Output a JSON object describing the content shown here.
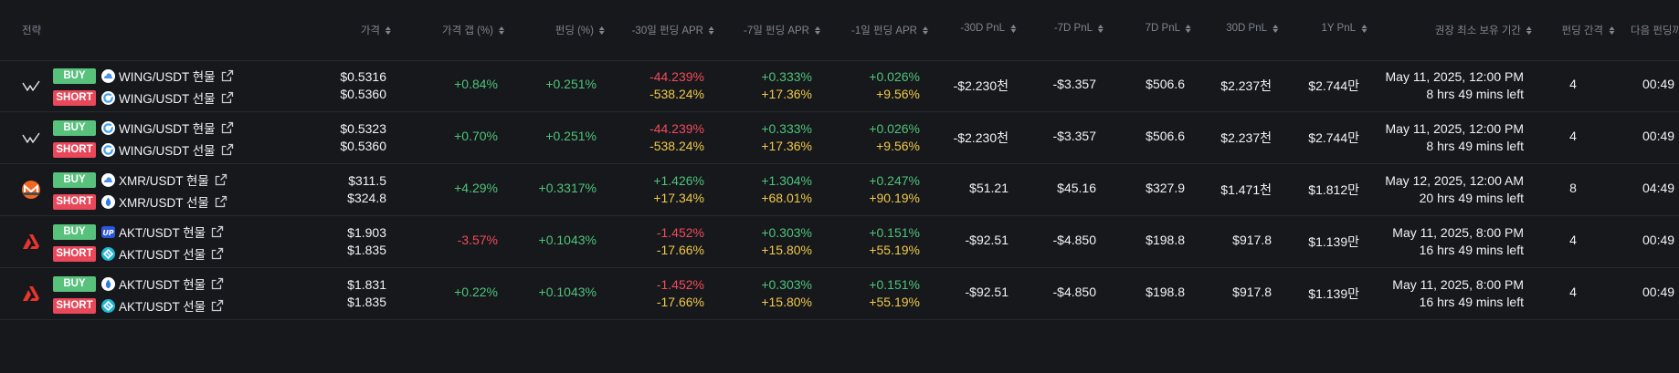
{
  "header": {
    "strategy": "전략",
    "price": "가격",
    "price_gap": "가격 갭 (%)",
    "funding": "펀딩 (%)",
    "apr30": "-30일 펀딩 APR",
    "apr7": "-7일 펀딩 APR",
    "apr1": "-1일 펀딩 APR",
    "pnl30neg": "-30D PnL",
    "pnl7neg": "-7D PnL",
    "pnl7": "7D PnL",
    "pnl30": "30D PnL",
    "pnl1y": "1Y PnL",
    "min_hold": "권장 최소 보유 기간",
    "interval": "펀딩 간격",
    "next": "다음 펀딩까"
  },
  "rows": [
    {
      "logo": "wing-logo-icon",
      "buy": {
        "badge": "BUY",
        "pair": "WING/USDT 현물",
        "exchange_icon": "cloud-exchange-icon",
        "exchange_color": "#4a8ef0"
      },
      "short": {
        "badge": "SHORT",
        "pair": "WING/USDT 선물",
        "exchange_icon": "ring-exchange-icon",
        "exchange_color": "#3fa0ee"
      },
      "price1": "$0.5316",
      "price2": "$0.5360",
      "gap": "+0.84%",
      "gap_color": "green",
      "funding": "+0.251%",
      "apr30a": "-44.239%",
      "apr30b": "-538.24%",
      "apr30a_color": "red",
      "apr7a": "+0.333%",
      "apr7b": "+17.36%",
      "apr1a": "+0.026%",
      "apr1b": "+9.56%",
      "pnl30neg": "-$2.230천",
      "pnl7neg": "-$3.357",
      "pnl7": "$506.6",
      "pnl30": "$2.237천",
      "pnl1y": "$2.744만",
      "hold1": "May 11, 2025, 12:00 PM",
      "hold2": "8 hrs 49 mins left",
      "interval": "4",
      "next": "00:49"
    },
    {
      "logo": "wing-logo-icon",
      "buy": {
        "badge": "BUY",
        "pair": "WING/USDT 현물",
        "exchange_icon": "ring-exchange-icon",
        "exchange_color": "#3fa0ee"
      },
      "short": {
        "badge": "SHORT",
        "pair": "WING/USDT 선물",
        "exchange_icon": "ring-exchange-icon",
        "exchange_color": "#3fa0ee"
      },
      "price1": "$0.5323",
      "price2": "$0.5360",
      "gap": "+0.70%",
      "gap_color": "green",
      "funding": "+0.251%",
      "apr30a": "-44.239%",
      "apr30b": "-538.24%",
      "apr30a_color": "red",
      "apr7a": "+0.333%",
      "apr7b": "+17.36%",
      "apr1a": "+0.026%",
      "apr1b": "+9.56%",
      "pnl30neg": "-$2.230천",
      "pnl7neg": "-$3.357",
      "pnl7": "$506.6",
      "pnl30": "$2.237천",
      "pnl1y": "$2.744만",
      "hold1": "May 11, 2025, 12:00 PM",
      "hold2": "8 hrs 49 mins left",
      "interval": "4",
      "next": "00:49"
    },
    {
      "logo": "monero-logo-icon",
      "buy": {
        "badge": "BUY",
        "pair": "XMR/USDT 현물",
        "exchange_icon": "cloud-exchange-icon",
        "exchange_color": "#4a8ef0"
      },
      "short": {
        "badge": "SHORT",
        "pair": "XMR/USDT 선물",
        "exchange_icon": "drop-exchange-icon",
        "exchange_color": "#2f7be8"
      },
      "price1": "$311.5",
      "price2": "$324.8",
      "gap": "+4.29%",
      "gap_color": "green",
      "funding": "+0.3317%",
      "apr30a": "+1.426%",
      "apr30b": "+17.34%",
      "apr30a_color": "green",
      "apr7a": "+1.304%",
      "apr7b": "+68.01%",
      "apr1a": "+0.247%",
      "apr1b": "+90.19%",
      "pnl30neg": "$51.21",
      "pnl7neg": "$45.16",
      "pnl7": "$327.9",
      "pnl30": "$1.471천",
      "pnl1y": "$1.812만",
      "hold1": "May 12, 2025, 12:00 AM",
      "hold2": "20 hrs 49 mins left",
      "interval": "8",
      "next": "04:49"
    },
    {
      "logo": "akash-logo-icon",
      "buy": {
        "badge": "BUY",
        "pair": "AKT/USDT 현물",
        "exchange_icon": "up-exchange-icon",
        "exchange_color": "#2b57d8"
      },
      "short": {
        "badge": "SHORT",
        "pair": "AKT/USDT 선물",
        "exchange_icon": "diamond-exchange-icon",
        "exchange_color": "#1fb5d6"
      },
      "price1": "$1.903",
      "price2": "$1.835",
      "gap": "-3.57%",
      "gap_color": "red",
      "funding": "+0.1043%",
      "apr30a": "-1.452%",
      "apr30b": "-17.66%",
      "apr30a_color": "red",
      "apr7a": "+0.303%",
      "apr7b": "+15.80%",
      "apr1a": "+0.151%",
      "apr1b": "+55.19%",
      "pnl30neg": "-$92.51",
      "pnl7neg": "-$4.850",
      "pnl7": "$198.8",
      "pnl30": "$917.8",
      "pnl1y": "$1.139만",
      "hold1": "May 11, 2025, 8:00 PM",
      "hold2": "16 hrs 49 mins left",
      "interval": "4",
      "next": "00:49"
    },
    {
      "logo": "akash-logo-icon",
      "buy": {
        "badge": "BUY",
        "pair": "AKT/USDT 현물",
        "exchange_icon": "drop-exchange-icon",
        "exchange_color": "#2f7be8"
      },
      "short": {
        "badge": "SHORT",
        "pair": "AKT/USDT 선물",
        "exchange_icon": "diamond-exchange-icon",
        "exchange_color": "#1fb5d6"
      },
      "price1": "$1.831",
      "price2": "$1.835",
      "gap": "+0.22%",
      "gap_color": "green",
      "funding": "+0.1043%",
      "apr30a": "-1.452%",
      "apr30b": "-17.66%",
      "apr30a_color": "red",
      "apr7a": "+0.303%",
      "apr7b": "+15.80%",
      "apr1a": "+0.151%",
      "apr1b": "+55.19%",
      "pnl30neg": "-$92.51",
      "pnl7neg": "-$4.850",
      "pnl7": "$198.8",
      "pnl30": "$917.8",
      "pnl1y": "$1.139만",
      "hold1": "May 11, 2025, 8:00 PM",
      "hold2": "16 hrs 49 mins left",
      "interval": "4",
      "next": "00:49"
    }
  ]
}
